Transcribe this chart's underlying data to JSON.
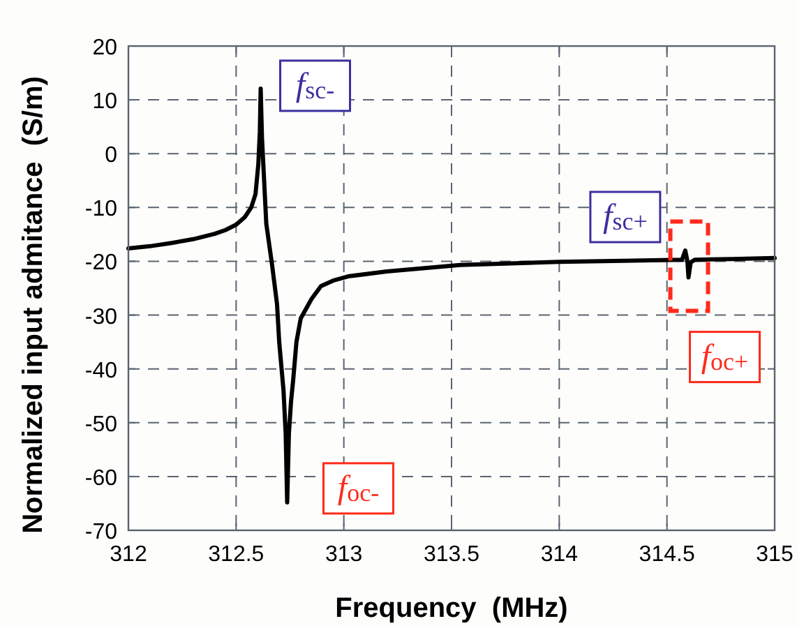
{
  "chart_data": {
    "type": "line",
    "xlabel": "Frequency  (MHz)",
    "ylabel": "Normalized input admitance  (S/m)",
    "xlim": [
      312,
      315
    ],
    "xticks": [
      312,
      312.5,
      313,
      313.5,
      314,
      314.5,
      315
    ],
    "ylim": [
      -70,
      20
    ],
    "yticks": [
      -70,
      -60,
      -50,
      -40,
      -30,
      -20,
      -10,
      0,
      10,
      20
    ],
    "grid": true,
    "marker": "none",
    "line_style": "solid",
    "series": [
      {
        "color": "#000000",
        "x": [
          312,
          312.1,
          312.2,
          312.3,
          312.4,
          312.45,
          312.5,
          312.54,
          312.57,
          312.59,
          312.603,
          312.61,
          312.614,
          312.62,
          312.64,
          312.667,
          312.69,
          312.7,
          312.72,
          312.73,
          312.737,
          312.745,
          312.755,
          312.765,
          312.78,
          312.8,
          312.85,
          312.894,
          312.95,
          313.02,
          313.2,
          313.54,
          314,
          314.3,
          314.57,
          314.585,
          314.595,
          314.6,
          314.61,
          314.63,
          314.8,
          315
        ],
        "values": [
          -17.6,
          -17.2,
          -16.6,
          -15.9,
          -14.9,
          -14.2,
          -13.2,
          -11.8,
          -10,
          -7.5,
          -2,
          4,
          12.1,
          3,
          -13,
          -20.7,
          -28,
          -35,
          -44,
          -52,
          -64.8,
          -52,
          -46,
          -42,
          -35,
          -30.6,
          -27,
          -24.6,
          -23.6,
          -22.8,
          -21.9,
          -20.7,
          -20.1,
          -19.9,
          -19.7,
          -18,
          -20,
          -23,
          -20.2,
          -19.7,
          -19.6,
          -19.4
        ]
      }
    ],
    "annotations": [
      {
        "text": "f$_{sc-}$",
        "x": 312.614,
        "y": 12.1
      },
      {
        "text": "f$_{oc-}$",
        "x": 312.737,
        "y": -64.8
      },
      {
        "text": "f$_{sc+}$",
        "x": 314.585,
        "y": -18
      },
      {
        "text": "f$_{oc+}$",
        "x": 314.6,
        "y": -23
      }
    ]
  }
}
